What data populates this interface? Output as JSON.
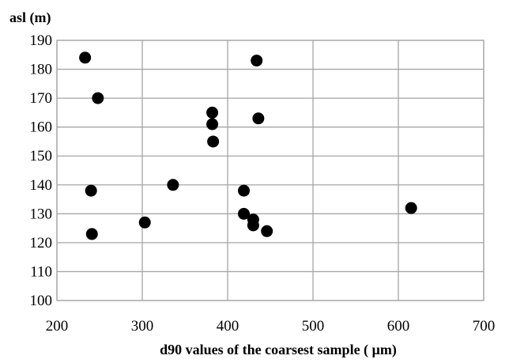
{
  "chart_data": {
    "type": "scatter",
    "title": "",
    "xlabel": "d90 values of the coarsest sample ( µm)",
    "ylabel": "asl (m)",
    "xlim": [
      200,
      700
    ],
    "ylim": [
      100,
      190
    ],
    "xticks": [
      200,
      300,
      400,
      500,
      600,
      700
    ],
    "yticks": [
      100,
      110,
      120,
      130,
      140,
      150,
      160,
      170,
      180,
      190
    ],
    "grid": true,
    "legend": "none",
    "marker_color": "#000000",
    "series": [
      {
        "points": [
          {
            "x": 233,
            "y": 184
          },
          {
            "x": 248,
            "y": 170
          },
          {
            "x": 240,
            "y": 138
          },
          {
            "x": 241,
            "y": 123
          },
          {
            "x": 303,
            "y": 127
          },
          {
            "x": 336,
            "y": 140
          },
          {
            "x": 382,
            "y": 165
          },
          {
            "x": 382,
            "y": 161
          },
          {
            "x": 383,
            "y": 155
          },
          {
            "x": 434,
            "y": 183
          },
          {
            "x": 436,
            "y": 163
          },
          {
            "x": 419,
            "y": 138
          },
          {
            "x": 419,
            "y": 130
          },
          {
            "x": 430,
            "y": 128
          },
          {
            "x": 430,
            "y": 126
          },
          {
            "x": 446,
            "y": 124
          },
          {
            "x": 615,
            "y": 132
          }
        ]
      }
    ]
  }
}
